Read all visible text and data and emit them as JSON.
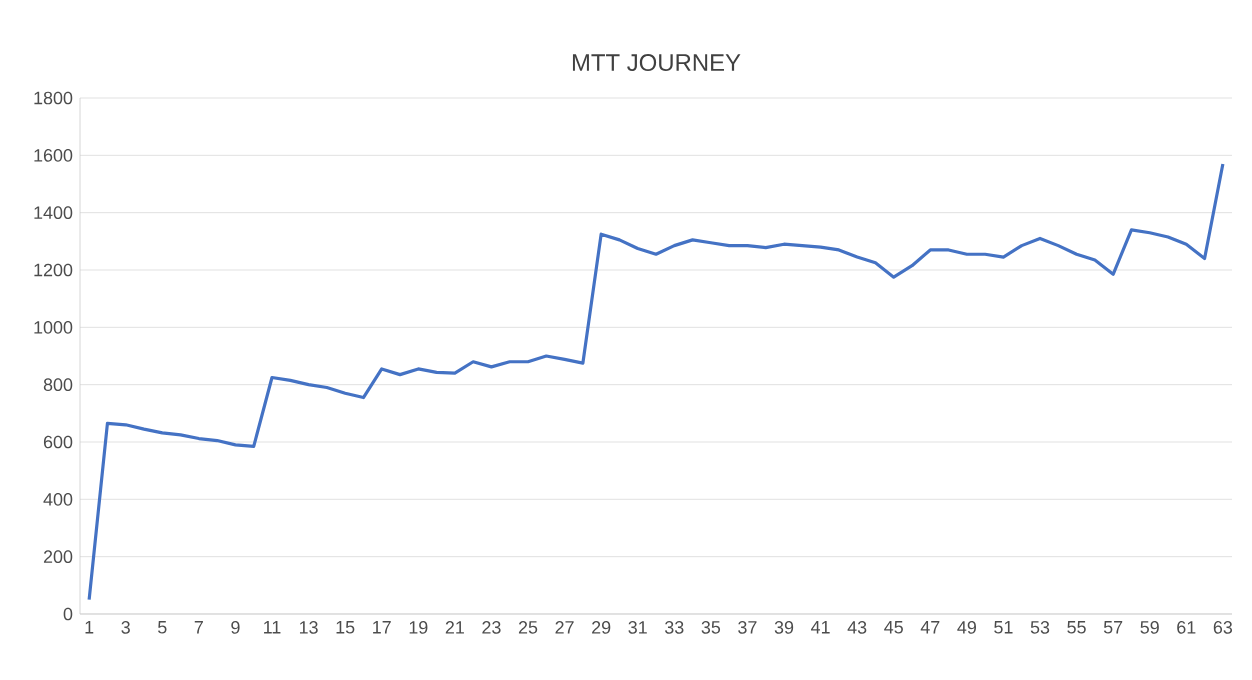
{
  "chart_data": {
    "type": "line",
    "title": "MTT JOURNEY",
    "categories": [
      "1",
      null,
      "3",
      null,
      "5",
      null,
      "7",
      null,
      "9",
      null,
      "11",
      null,
      "13",
      null,
      "15",
      null,
      "17",
      null,
      "19",
      null,
      "21",
      null,
      "23",
      null,
      "25",
      null,
      "27",
      null,
      "29",
      null,
      "31",
      null,
      "33",
      null,
      "35",
      null,
      "37",
      null,
      "39",
      null,
      "41",
      null,
      "43",
      null,
      "45",
      null,
      "47",
      null,
      "49",
      null,
      "51",
      null,
      "53",
      null,
      "55",
      null,
      "57",
      null,
      "59",
      null,
      "61",
      null,
      "63"
    ],
    "series": [
      {
        "color": "#4472c4",
        "values": [
          50,
          665,
          660,
          645,
          632,
          625,
          612,
          605,
          590,
          585,
          825,
          815,
          800,
          790,
          770,
          755,
          855,
          835,
          855,
          843,
          840,
          880,
          862,
          880,
          880,
          900,
          888,
          875,
          1325,
          1305,
          1275,
          1255,
          1285,
          1305,
          1295,
          1285,
          1285,
          1278,
          1290,
          1285,
          1280,
          1270,
          1245,
          1225,
          1175,
          1215,
          1270,
          1270,
          1255,
          1255,
          1245,
          1285,
          1310,
          1285,
          1255,
          1235,
          1185,
          1340,
          1330,
          1315,
          1290,
          1240,
          1570
        ]
      }
    ],
    "ylim": [
      0,
      1800
    ],
    "yticks": [
      0,
      200,
      400,
      600,
      800,
      1000,
      1200,
      1400,
      1600,
      1800
    ],
    "grid": "y",
    "marker": "none",
    "line_style": "solid"
  }
}
